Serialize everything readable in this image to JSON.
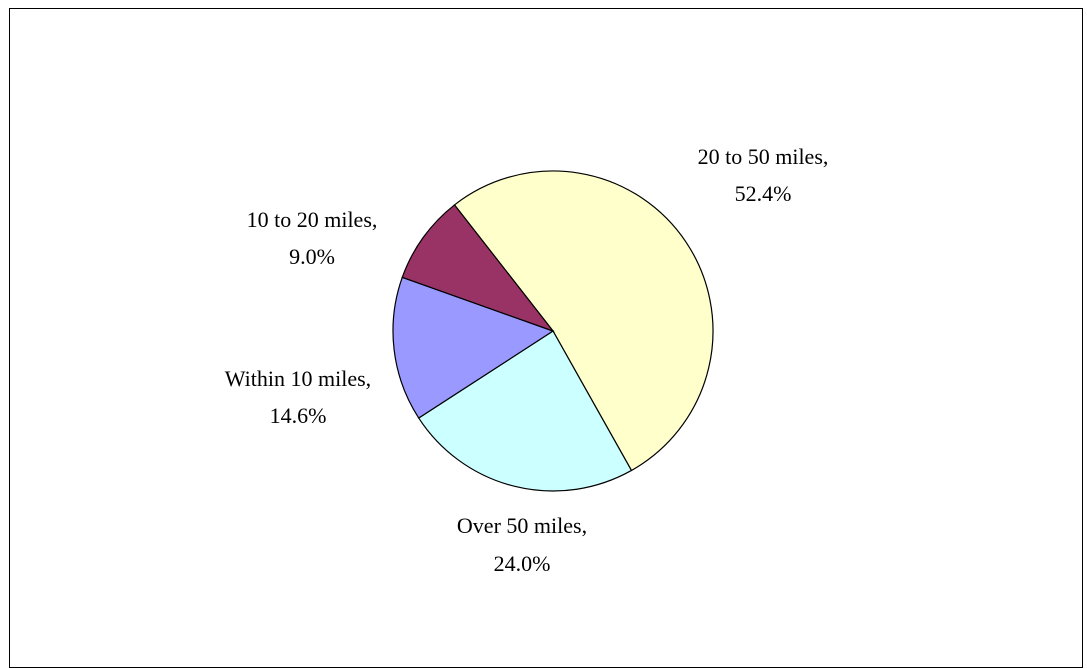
{
  "chart_data": {
    "type": "pie",
    "start_angle_deg": 232,
    "direction": "clockwise",
    "slices": [
      {
        "label": "20 to 50 miles,",
        "percent_label": "52.4%",
        "value": 52.4,
        "color": "#ffffcc"
      },
      {
        "label": "Over 50 miles,",
        "percent_label": "24.0%",
        "value": 24.0,
        "color": "#ccffff"
      },
      {
        "label": "Within 10 miles,",
        "percent_label": "14.6%",
        "value": 14.6,
        "color": "#9999ff"
      },
      {
        "label": "10 to 20 miles,",
        "percent_label": "9.0%",
        "value": 9.0,
        "color": "#993366"
      }
    ]
  }
}
